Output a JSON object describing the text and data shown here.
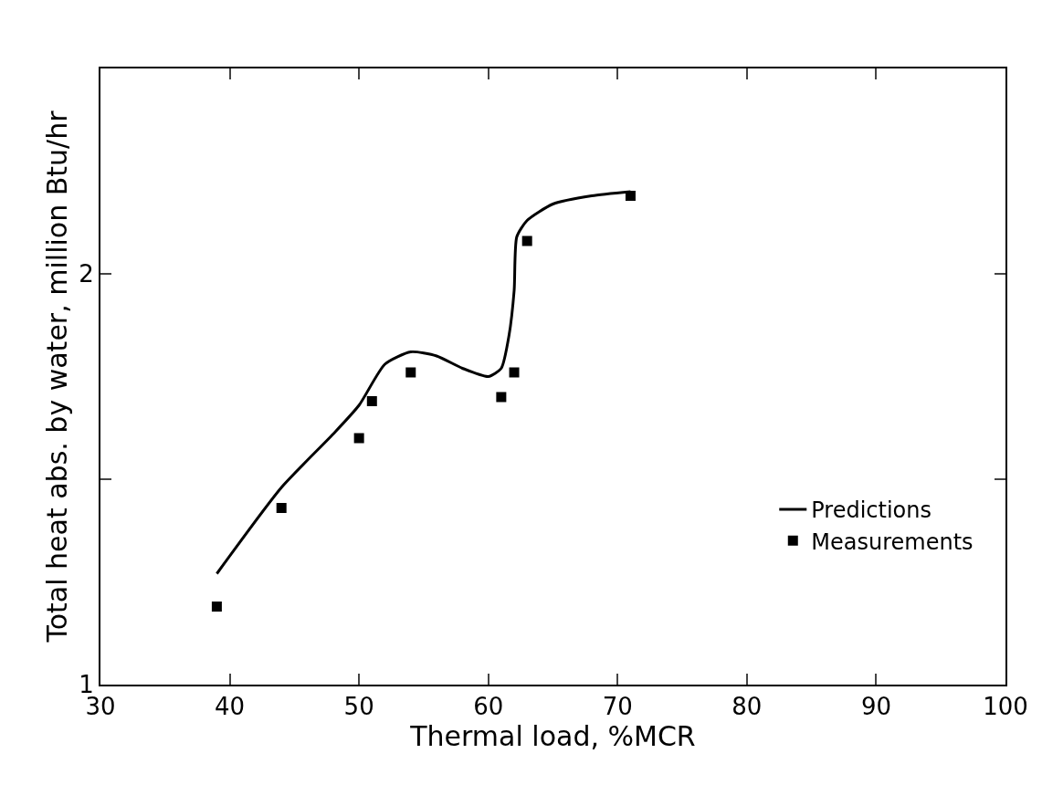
{
  "chart_data": {
    "type": "scatter",
    "xlabel": "Thermal load, %MCR",
    "ylabel": "Total heat abs. by water, million Btu/hr",
    "xlim": [
      30,
      100
    ],
    "xticks": [
      30,
      40,
      50,
      60,
      70,
      80,
      90,
      100
    ],
    "ylim": [
      1,
      2.5
    ],
    "yticks": [
      1,
      {
        "value": 1.5,
        "label": null
      },
      2
    ],
    "legend": "bottom right",
    "series": [
      {
        "name": "Predictions",
        "type": "line",
        "color": "#000000",
        "marker": "none",
        "line_style": "solid",
        "x": [
          39,
          44,
          48,
          50,
          52,
          54,
          56,
          58,
          60,
          61,
          61.6,
          62,
          62.2,
          63,
          65,
          68,
          71
        ],
        "values": [
          1.27,
          1.48,
          1.61,
          1.68,
          1.78,
          1.81,
          1.8,
          1.77,
          1.75,
          1.77,
          1.85,
          1.96,
          2.09,
          2.13,
          2.17,
          2.19,
          2.2
        ]
      },
      {
        "name": "Measurements",
        "color": "#000000",
        "marker": "square",
        "x": [
          39,
          44,
          50,
          51,
          54,
          61,
          62,
          63,
          71
        ],
        "values": [
          1.19,
          1.43,
          1.6,
          1.69,
          1.76,
          1.7,
          1.76,
          2.08,
          2.19
        ]
      }
    ]
  }
}
